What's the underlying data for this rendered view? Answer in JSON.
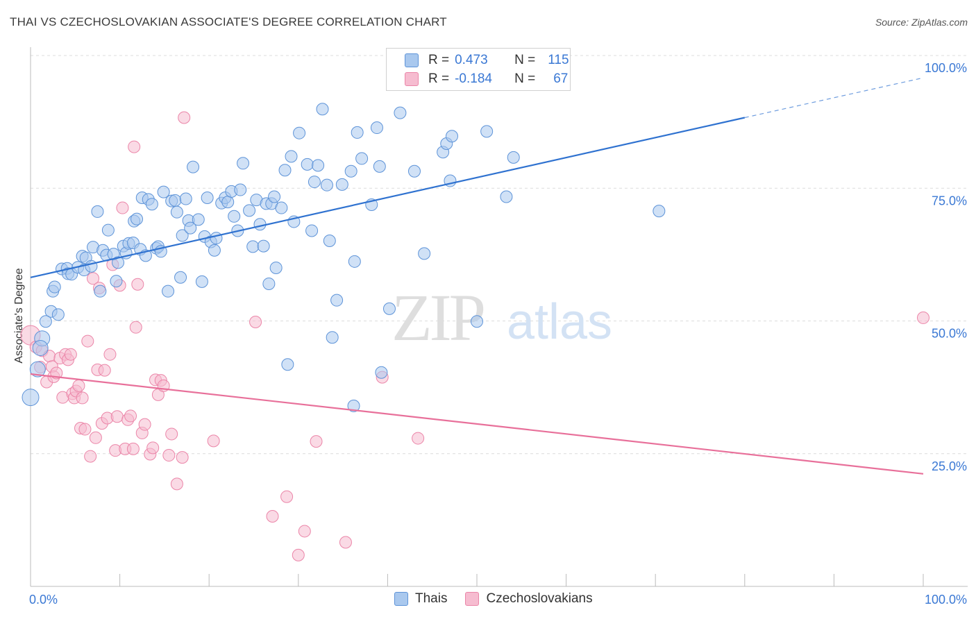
{
  "title": "THAI VS CZECHOSLOVAKIAN ASSOCIATE'S DEGREE CORRELATION CHART",
  "source": "Source: ZipAtlas.com",
  "colors": {
    "thais_fill": "#a9c8ee",
    "thais_stroke": "#5d93d8",
    "thais_line": "#2f72d0",
    "czech_fill": "#f6bcd0",
    "czech_stroke": "#eb85a8",
    "czech_line": "#e8709a",
    "axis_text": "#3a78d4",
    "grid": "#dcdcdc"
  },
  "legend": {
    "rows": [
      {
        "r_label": "R =",
        "r_value": "0.473",
        "n_label": "N =",
        "n_value": "115"
      },
      {
        "r_label": "R =",
        "r_value": "-0.184",
        "n_label": "N =",
        "n_value": "67"
      }
    ]
  },
  "bottom_legend": {
    "thais": "Thais",
    "czech": "Czechoslovakians"
  },
  "chart_data": {
    "type": "scatter",
    "title": "THAI VS CZECHOSLOVAKIAN ASSOCIATE'S DEGREE CORRELATION CHART",
    "xlabel": "",
    "ylabel": "Associate's Degree",
    "xlim": [
      0,
      100
    ],
    "ylim": [
      0,
      100
    ],
    "x_tick_labels": [
      "0.0%",
      "100.0%"
    ],
    "y_tick_labels": [
      "100.0%",
      "75.0%",
      "50.0%",
      "25.0%"
    ],
    "y_ticks": [
      100,
      75,
      50,
      25
    ],
    "grid": true,
    "legend_position": "bottom",
    "watermark": "ZIPatlas",
    "series": [
      {
        "name": "Thais",
        "r": 0.473,
        "n": 115,
        "trend": {
          "x0": 0,
          "y0": 58.2,
          "x1": 80,
          "y1": 88.3,
          "dash_to_x": 100,
          "dash_to_y": 95.8
        },
        "points": [
          [
            0.0,
            35.6
          ],
          [
            0.8,
            40.9
          ],
          [
            1.3,
            46.7
          ],
          [
            1.1,
            44.9
          ],
          [
            2.3,
            51.8
          ],
          [
            1.7,
            49.9
          ],
          [
            3.1,
            51.2
          ],
          [
            2.5,
            55.6
          ],
          [
            2.7,
            56.4
          ],
          [
            3.5,
            59.8
          ],
          [
            4.1,
            59.9
          ],
          [
            4.2,
            58.9
          ],
          [
            4.6,
            58.8
          ],
          [
            5.3,
            60.1
          ],
          [
            6.0,
            59.6
          ],
          [
            5.8,
            62.2
          ],
          [
            6.2,
            61.9
          ],
          [
            7.0,
            63.9
          ],
          [
            6.8,
            60.3
          ],
          [
            7.5,
            70.6
          ],
          [
            7.8,
            55.6
          ],
          [
            8.1,
            63.3
          ],
          [
            8.5,
            62.4
          ],
          [
            8.7,
            67.1
          ],
          [
            9.3,
            62.6
          ],
          [
            9.6,
            57.5
          ],
          [
            9.8,
            61.0
          ],
          [
            10.4,
            64.1
          ],
          [
            10.7,
            62.8
          ],
          [
            11.0,
            64.6
          ],
          [
            11.5,
            64.7
          ],
          [
            11.6,
            68.8
          ],
          [
            11.9,
            69.2
          ],
          [
            12.3,
            63.5
          ],
          [
            12.5,
            73.2
          ],
          [
            12.9,
            62.3
          ],
          [
            13.2,
            72.9
          ],
          [
            13.6,
            72.0
          ],
          [
            14.1,
            63.7
          ],
          [
            14.3,
            64.0
          ],
          [
            14.6,
            63.1
          ],
          [
            14.9,
            74.3
          ],
          [
            15.4,
            55.6
          ],
          [
            15.8,
            72.6
          ],
          [
            16.2,
            72.7
          ],
          [
            16.4,
            70.5
          ],
          [
            17.0,
            66.1
          ],
          [
            16.8,
            58.2
          ],
          [
            17.4,
            73.0
          ],
          [
            17.7,
            68.9
          ],
          [
            17.9,
            67.5
          ],
          [
            18.2,
            79.0
          ],
          [
            18.8,
            69.1
          ],
          [
            19.2,
            57.4
          ],
          [
            19.5,
            65.9
          ],
          [
            19.8,
            73.2
          ],
          [
            20.2,
            64.9
          ],
          [
            20.6,
            63.3
          ],
          [
            20.8,
            65.6
          ],
          [
            21.4,
            72.2
          ],
          [
            21.8,
            73.2
          ],
          [
            22.1,
            72.4
          ],
          [
            22.5,
            74.4
          ],
          [
            22.8,
            69.7
          ],
          [
            23.2,
            67.0
          ],
          [
            23.5,
            74.7
          ],
          [
            23.8,
            79.7
          ],
          [
            24.5,
            70.8
          ],
          [
            24.9,
            64.0
          ],
          [
            25.3,
            72.8
          ],
          [
            25.7,
            68.2
          ],
          [
            26.1,
            64.1
          ],
          [
            26.4,
            72.1
          ],
          [
            26.7,
            57.0
          ],
          [
            27.0,
            72.1
          ],
          [
            27.3,
            73.4
          ],
          [
            27.5,
            60.0
          ],
          [
            28.1,
            71.3
          ],
          [
            28.5,
            78.4
          ],
          [
            28.8,
            41.8
          ],
          [
            29.2,
            81.0
          ],
          [
            29.5,
            68.7
          ],
          [
            30.1,
            85.4
          ],
          [
            31.0,
            79.5
          ],
          [
            31.5,
            67.0
          ],
          [
            31.8,
            76.2
          ],
          [
            32.2,
            79.3
          ],
          [
            32.7,
            89.9
          ],
          [
            33.2,
            75.6
          ],
          [
            33.5,
            65.1
          ],
          [
            33.8,
            46.9
          ],
          [
            34.3,
            53.9
          ],
          [
            34.9,
            75.7
          ],
          [
            35.9,
            78.2
          ],
          [
            36.3,
            61.2
          ],
          [
            36.6,
            85.5
          ],
          [
            37.1,
            80.6
          ],
          [
            38.2,
            71.9
          ],
          [
            38.8,
            86.4
          ],
          [
            39.1,
            79.1
          ],
          [
            39.3,
            40.3
          ],
          [
            40.2,
            52.3
          ],
          [
            41.4,
            89.2
          ],
          [
            43.0,
            78.2
          ],
          [
            44.1,
            62.7
          ],
          [
            46.2,
            81.8
          ],
          [
            46.6,
            83.4
          ],
          [
            47.0,
            76.4
          ],
          [
            47.2,
            84.8
          ],
          [
            50.0,
            49.9
          ],
          [
            51.1,
            85.7
          ],
          [
            53.3,
            73.4
          ],
          [
            54.1,
            80.8
          ],
          [
            70.4,
            70.7
          ],
          [
            36.2,
            34.0
          ]
        ]
      },
      {
        "name": "Czechoslovakians",
        "r": -0.184,
        "n": 67,
        "trend": {
          "x0": 0,
          "y0": 40.0,
          "x1": 100,
          "y1": 21.2
        },
        "points": [
          [
            0.0,
            47.3
          ],
          [
            0.6,
            45.1
          ],
          [
            1.3,
            44.4
          ],
          [
            1.1,
            41.3
          ],
          [
            1.8,
            38.5
          ],
          [
            2.1,
            43.4
          ],
          [
            2.4,
            41.4
          ],
          [
            2.6,
            39.5
          ],
          [
            2.9,
            40.2
          ],
          [
            3.3,
            43.0
          ],
          [
            3.6,
            35.6
          ],
          [
            3.9,
            43.7
          ],
          [
            4.2,
            42.7
          ],
          [
            4.5,
            43.7
          ],
          [
            4.7,
            36.3
          ],
          [
            4.9,
            35.5
          ],
          [
            5.1,
            36.8
          ],
          [
            5.4,
            37.8
          ],
          [
            5.8,
            35.5
          ],
          [
            5.6,
            29.8
          ],
          [
            6.1,
            29.6
          ],
          [
            6.4,
            46.2
          ],
          [
            6.7,
            24.5
          ],
          [
            7.0,
            58.0
          ],
          [
            7.3,
            28.0
          ],
          [
            7.7,
            56.2
          ],
          [
            7.5,
            40.8
          ],
          [
            8.0,
            30.7
          ],
          [
            8.3,
            40.7
          ],
          [
            8.6,
            31.7
          ],
          [
            8.9,
            43.7
          ],
          [
            9.2,
            60.6
          ],
          [
            9.5,
            25.6
          ],
          [
            9.7,
            32.0
          ],
          [
            10.0,
            56.7
          ],
          [
            10.3,
            71.3
          ],
          [
            10.6,
            25.9
          ],
          [
            10.9,
            31.4
          ],
          [
            11.2,
            32.1
          ],
          [
            11.5,
            25.9
          ],
          [
            11.6,
            82.8
          ],
          [
            11.8,
            48.8
          ],
          [
            12.0,
            56.9
          ],
          [
            12.5,
            28.9
          ],
          [
            12.8,
            30.5
          ],
          [
            13.4,
            24.9
          ],
          [
            13.7,
            26.1
          ],
          [
            14.0,
            38.9
          ],
          [
            14.3,
            36.1
          ],
          [
            14.6,
            38.8
          ],
          [
            14.9,
            37.8
          ],
          [
            15.5,
            24.7
          ],
          [
            15.8,
            28.7
          ],
          [
            16.4,
            19.3
          ],
          [
            17.0,
            24.3
          ],
          [
            17.2,
            88.3
          ],
          [
            20.5,
            27.4
          ],
          [
            25.2,
            49.8
          ],
          [
            27.1,
            13.2
          ],
          [
            28.7,
            16.9
          ],
          [
            30.0,
            5.9
          ],
          [
            30.7,
            10.4
          ],
          [
            32.0,
            27.3
          ],
          [
            35.3,
            8.3
          ],
          [
            39.4,
            39.4
          ],
          [
            43.4,
            27.9
          ],
          [
            100.0,
            50.6
          ]
        ]
      }
    ]
  }
}
